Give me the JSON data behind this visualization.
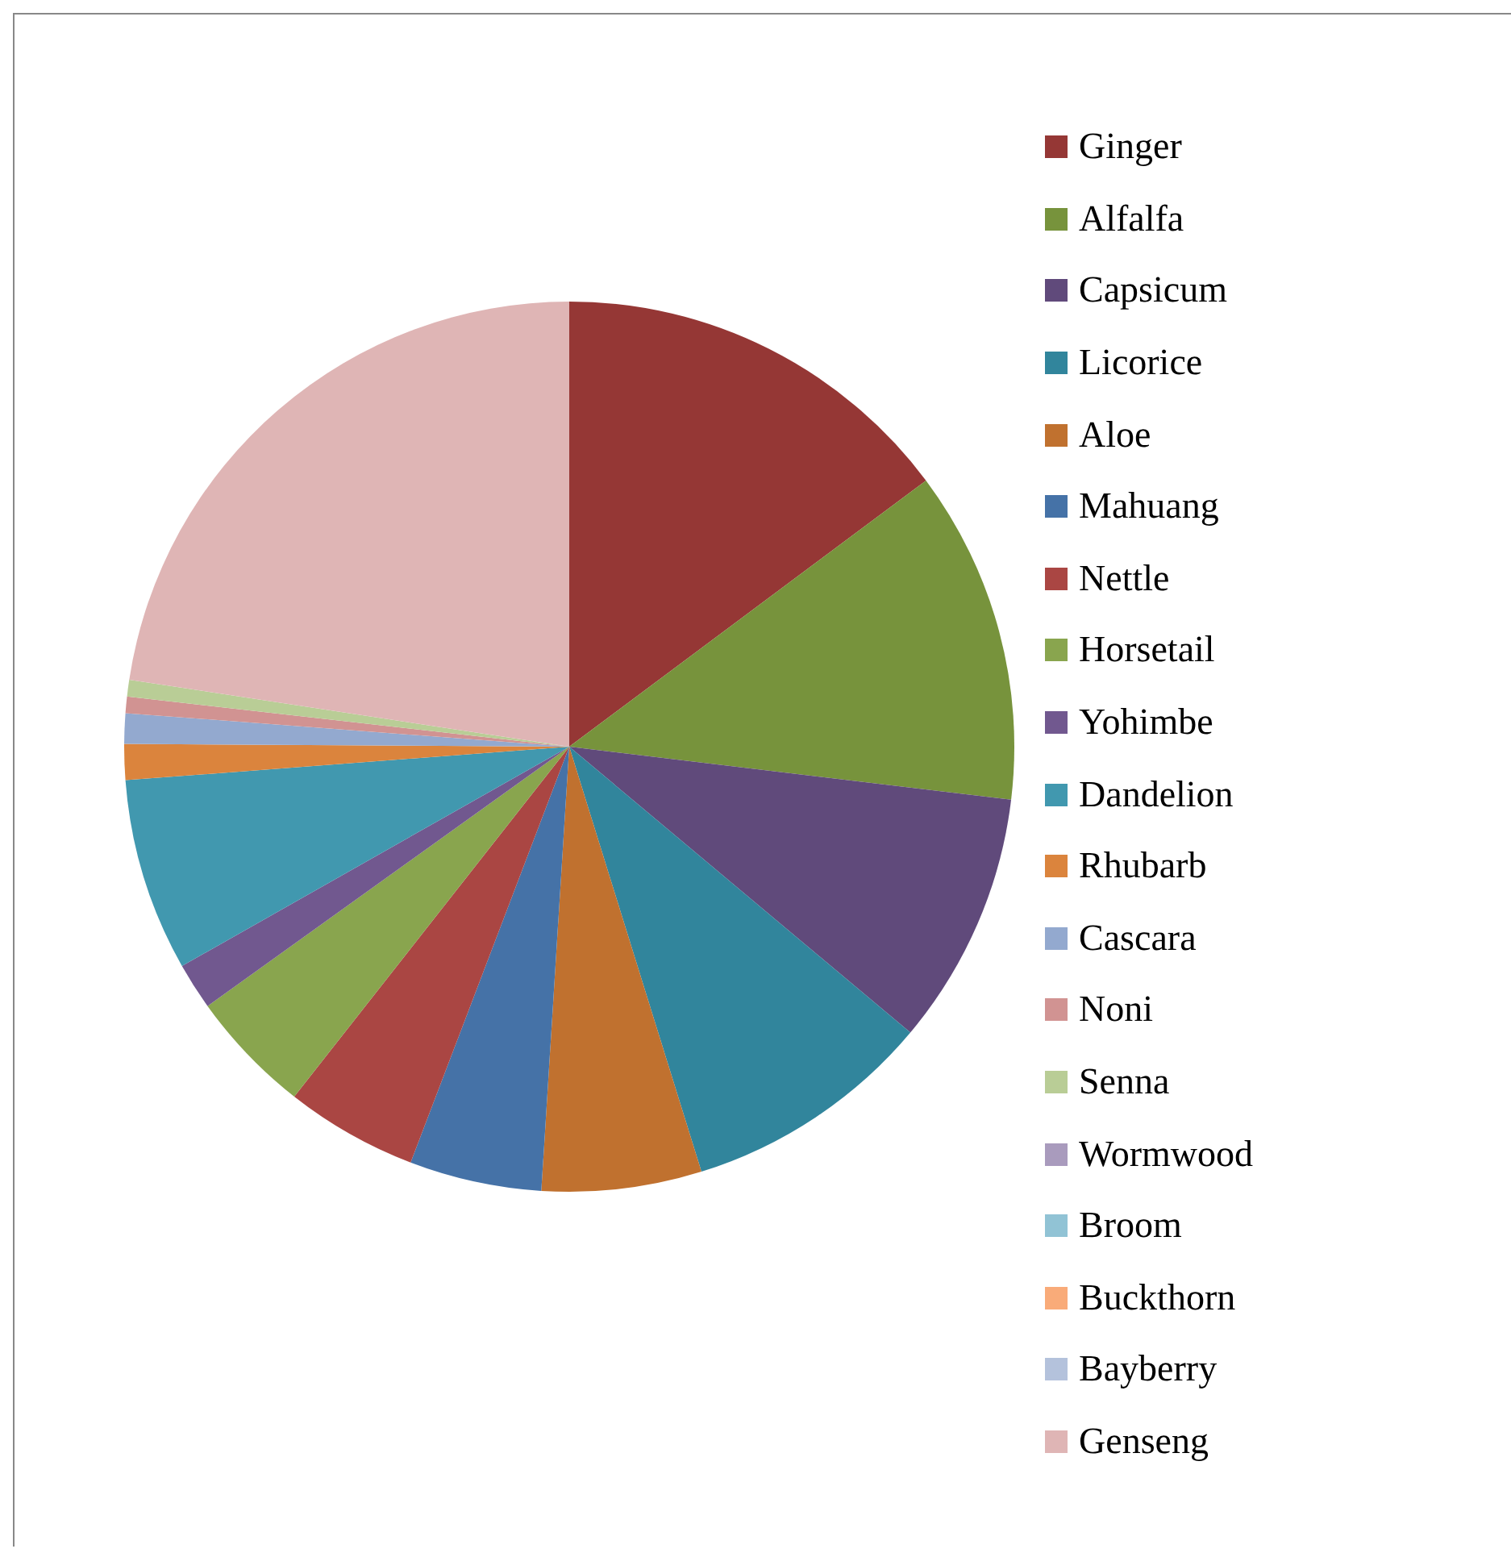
{
  "chart_data": {
    "type": "pie",
    "legend": "right",
    "categories": [
      "Ginger",
      "Alfalfa",
      "Capsicum",
      "Licorice",
      "Aloe",
      "Mahuang",
      "Nettle",
      "Horsetail",
      "Yohimbe",
      "Dandelion",
      "Rhubarb",
      "Cascara",
      "Noni",
      "Senna",
      "Wormwood",
      "Broom",
      "Buckthorn",
      "Bayberry",
      "Genseng"
    ],
    "values": [
      14.8,
      12.1,
      9.2,
      9.1,
      5.8,
      4.8,
      4.8,
      4.5,
      1.7,
      7,
      1.3,
      1.1,
      0.6,
      0.6,
      0,
      0,
      0,
      0,
      22.6
    ],
    "colors": [
      "#953735",
      "#77933c",
      "#604a7b",
      "#31859c",
      "#c0712f",
      "#4572a7",
      "#aa4643",
      "#89a54e",
      "#71588f",
      "#4198af",
      "#db843d",
      "#93a9cf",
      "#d19392",
      "#b9cd96",
      "#a99bbd",
      "#91c3d5",
      "#f9ab79",
      "#b4c2dc",
      "#dfb5b5"
    ]
  }
}
